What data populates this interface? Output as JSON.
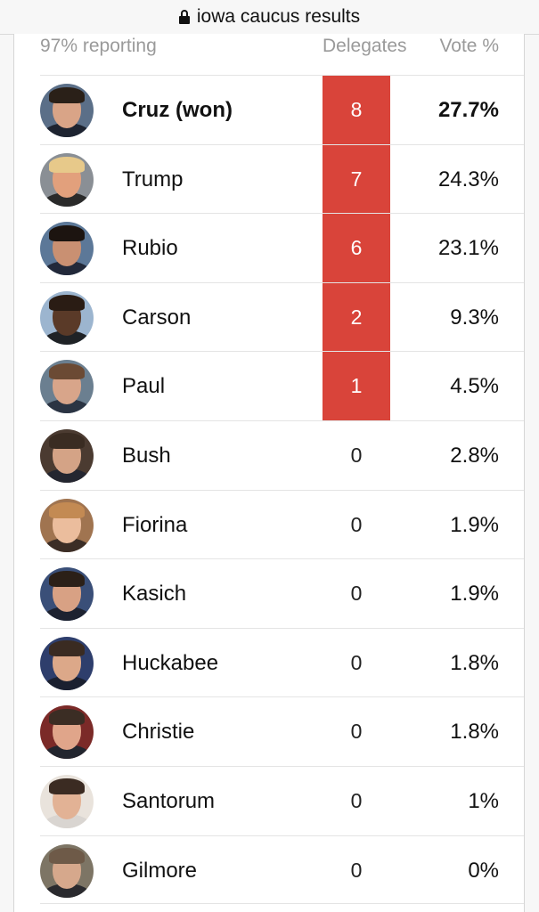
{
  "browser": {
    "url_title": "iowa caucus results"
  },
  "table": {
    "reporting": "97% reporting",
    "col_delegates": "Delegates",
    "col_vote": "Vote %",
    "candidates": [
      {
        "name": "Cruz (won)",
        "delegates": "8",
        "vote": "27.7%",
        "winner": true,
        "colors": {
          "bg": "#5b6f88",
          "face": "#d9a487",
          "hair": "#2a2018",
          "suit": "#1d2330"
        }
      },
      {
        "name": "Trump",
        "delegates": "7",
        "vote": "24.3%",
        "winner": false,
        "colors": {
          "bg": "#8a8f95",
          "face": "#e2a07c",
          "hair": "#e7c98a",
          "suit": "#2a2a2a"
        }
      },
      {
        "name": "Rubio",
        "delegates": "6",
        "vote": "23.1%",
        "winner": false,
        "colors": {
          "bg": "#5c7898",
          "face": "#c99072",
          "hair": "#1c1410",
          "suit": "#22293a"
        }
      },
      {
        "name": "Carson",
        "delegates": "2",
        "vote": "9.3%",
        "winner": false,
        "colors": {
          "bg": "#9cb5cf",
          "face": "#5a3a28",
          "hair": "#2a1c14",
          "suit": "#1f2226"
        }
      },
      {
        "name": "Paul",
        "delegates": "1",
        "vote": "4.5%",
        "winner": false,
        "colors": {
          "bg": "#6b7f90",
          "face": "#d8a58a",
          "hair": "#6b4a34",
          "suit": "#2b3443"
        }
      },
      {
        "name": "Bush",
        "delegates": "0",
        "vote": "2.8%",
        "winner": false,
        "colors": {
          "bg": "#4b3b31",
          "face": "#d4a386",
          "hair": "#3a2c22",
          "suit": "#242630"
        }
      },
      {
        "name": "Fiorina",
        "delegates": "0",
        "vote": "1.9%",
        "winner": false,
        "colors": {
          "bg": "#a07450",
          "face": "#ebbd9d",
          "hair": "#c38a53",
          "suit": "#3b2d26"
        }
      },
      {
        "name": "Kasich",
        "delegates": "0",
        "vote": "1.9%",
        "winner": false,
        "colors": {
          "bg": "#3a4f78",
          "face": "#d8a184",
          "hair": "#2b2018",
          "suit": "#1d2230"
        }
      },
      {
        "name": "Huckabee",
        "delegates": "0",
        "vote": "1.8%",
        "winner": false,
        "colors": {
          "bg": "#2e3e6c",
          "face": "#dca889",
          "hair": "#3a2b22",
          "suit": "#1b2030"
        }
      },
      {
        "name": "Christie",
        "delegates": "0",
        "vote": "1.8%",
        "winner": false,
        "colors": {
          "bg": "#7b2a28",
          "face": "#e0a58a",
          "hair": "#3b2d24",
          "suit": "#22252e"
        }
      },
      {
        "name": "Santorum",
        "delegates": "0",
        "vote": "1%",
        "winner": false,
        "colors": {
          "bg": "#e9e3dc",
          "face": "#e2b295",
          "hair": "#3b2b22",
          "suit": "#d9d5d1"
        }
      },
      {
        "name": "Gilmore",
        "delegates": "0",
        "vote": "0%",
        "winner": false,
        "colors": {
          "bg": "#7d7565",
          "face": "#d6a88c",
          "hair": "#6e5a48",
          "suit": "#2a2a2e"
        }
      }
    ]
  }
}
